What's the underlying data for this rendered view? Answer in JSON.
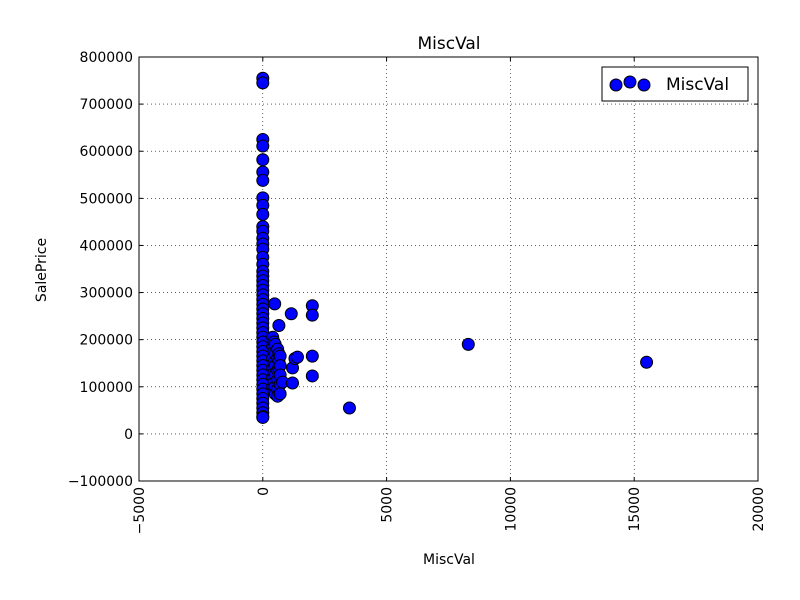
{
  "chart_data": {
    "type": "scatter",
    "title": "MiscVal",
    "xlabel": "MiscVal",
    "ylabel": "SalePrice",
    "xlim": [
      -5000,
      20000
    ],
    "ylim": [
      -100000,
      800000
    ],
    "xticks": [
      -5000,
      0,
      5000,
      10000,
      15000,
      20000
    ],
    "yticks": [
      -100000,
      0,
      100000,
      200000,
      300000,
      400000,
      500000,
      600000,
      700000,
      800000
    ],
    "xtick_labels": [
      "−5000",
      "0",
      "5000",
      "10000",
      "15000",
      "20000"
    ],
    "ytick_labels": [
      "−100000",
      "0",
      "100000",
      "200000",
      "300000",
      "400000",
      "500000",
      "600000",
      "700000",
      "800000"
    ],
    "grid": true,
    "legend_position": "top-right",
    "marker_color": "#0000ff",
    "series": [
      {
        "name": "MiscVal",
        "points": [
          [
            0,
            755000
          ],
          [
            0,
            745000
          ],
          [
            0,
            625000
          ],
          [
            0,
            611000
          ],
          [
            0,
            582000
          ],
          [
            0,
            556000
          ],
          [
            0,
            538000
          ],
          [
            0,
            501000
          ],
          [
            0,
            485000
          ],
          [
            0,
            466000
          ],
          [
            0,
            440000
          ],
          [
            0,
            430000
          ],
          [
            0,
            415000
          ],
          [
            0,
            403000
          ],
          [
            0,
            392000
          ],
          [
            0,
            375000
          ],
          [
            0,
            360000
          ],
          [
            0,
            345000
          ],
          [
            0,
            335000
          ],
          [
            0,
            325000
          ],
          [
            0,
            315000
          ],
          [
            0,
            305000
          ],
          [
            0,
            295000
          ],
          [
            0,
            285000
          ],
          [
            0,
            275000
          ],
          [
            0,
            265000
          ],
          [
            0,
            255000
          ],
          [
            0,
            245000
          ],
          [
            0,
            235000
          ],
          [
            0,
            225000
          ],
          [
            0,
            215000
          ],
          [
            0,
            205000
          ],
          [
            0,
            195000
          ],
          [
            0,
            185000
          ],
          [
            0,
            175000
          ],
          [
            0,
            165000
          ],
          [
            0,
            155000
          ],
          [
            0,
            145000
          ],
          [
            0,
            135000
          ],
          [
            0,
            125000
          ],
          [
            0,
            115000
          ],
          [
            0,
            105000
          ],
          [
            0,
            95000
          ],
          [
            0,
            85000
          ],
          [
            0,
            75000
          ],
          [
            0,
            65000
          ],
          [
            0,
            55000
          ],
          [
            0,
            45000
          ],
          [
            0,
            37000
          ],
          [
            0,
            34900
          ],
          [
            400,
            205000
          ],
          [
            400,
            185000
          ],
          [
            400,
            160000
          ],
          [
            400,
            140000
          ],
          [
            400,
            120000
          ],
          [
            400,
            100000
          ],
          [
            450,
            195000
          ],
          [
            450,
            175000
          ],
          [
            450,
            150000
          ],
          [
            450,
            130000
          ],
          [
            450,
            110000
          ],
          [
            450,
            90000
          ],
          [
            480,
            276000
          ],
          [
            500,
            190000
          ],
          [
            500,
            170000
          ],
          [
            500,
            145000
          ],
          [
            500,
            125000
          ],
          [
            500,
            100000
          ],
          [
            500,
            85000
          ],
          [
            600,
            180000
          ],
          [
            600,
            160000
          ],
          [
            600,
            135000
          ],
          [
            600,
            115000
          ],
          [
            600,
            95000
          ],
          [
            600,
            80000
          ],
          [
            650,
            230000
          ],
          [
            650,
            170000
          ],
          [
            650,
            155000
          ],
          [
            650,
            140000
          ],
          [
            700,
            165000
          ],
          [
            700,
            145000
          ],
          [
            700,
            125000
          ],
          [
            700,
            105000
          ],
          [
            700,
            85000
          ],
          [
            800,
            110000
          ],
          [
            1150,
            255000
          ],
          [
            1200,
            140000
          ],
          [
            1200,
            108000
          ],
          [
            1300,
            160000
          ],
          [
            1400,
            163000
          ],
          [
            2000,
            272000
          ],
          [
            2000,
            252000
          ],
          [
            2000,
            165000
          ],
          [
            2000,
            123000
          ],
          [
            3500,
            55000
          ],
          [
            8300,
            190000
          ],
          [
            15500,
            152000
          ]
        ]
      }
    ]
  }
}
